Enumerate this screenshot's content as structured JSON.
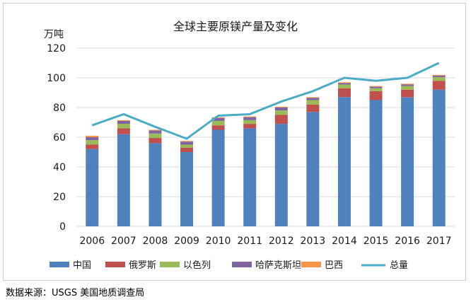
{
  "chart_data": {
    "type": "bar",
    "title": "全球主要原镁产量及变化",
    "ylabel": "万吨",
    "ylim": [
      0,
      120
    ],
    "yticks": [
      0,
      20,
      40,
      60,
      80,
      100,
      120
    ],
    "grid": true,
    "legend": "bottom",
    "categories": [
      "2006",
      "2007",
      "2008",
      "2009",
      "2010",
      "2011",
      "2012",
      "2013",
      "2014",
      "2015",
      "2016",
      "2017"
    ],
    "stacked_series": [
      {
        "name": "中国",
        "color": "#4f81bd",
        "values": [
          52,
          62,
          56,
          50,
          65,
          66,
          69,
          77,
          87,
          85,
          87,
          92
        ]
      },
      {
        "name": "俄罗斯",
        "color": "#c0504d",
        "values": [
          3,
          4,
          3.5,
          3,
          3,
          3,
          6,
          5,
          6,
          6,
          5,
          6
        ]
      },
      {
        "name": "以色列",
        "color": "#9bbb59",
        "values": [
          3,
          3,
          3,
          2,
          3,
          2.5,
          3,
          3,
          2.5,
          2,
          2.5,
          2.5
        ]
      },
      {
        "name": "哈萨克斯坦",
        "color": "#8064a2",
        "values": [
          2,
          2,
          2,
          2,
          2,
          2,
          2,
          1.5,
          1,
          1,
          1,
          1
        ]
      },
      {
        "name": "巴西",
        "color": "#f79646",
        "values": [
          1,
          0.5,
          0.5,
          0.5,
          0.5,
          0.5,
          0.5,
          0.5,
          0.5,
          0.5,
          0.5,
          0.5
        ]
      }
    ],
    "line_series": {
      "name": "总量",
      "color": "#4bacc6",
      "values": [
        68,
        75.5,
        67,
        59,
        74.5,
        75.5,
        84,
        91,
        100,
        98,
        100,
        110
      ]
    }
  },
  "source_note": "数据来源：USGS 美国地质调查局"
}
